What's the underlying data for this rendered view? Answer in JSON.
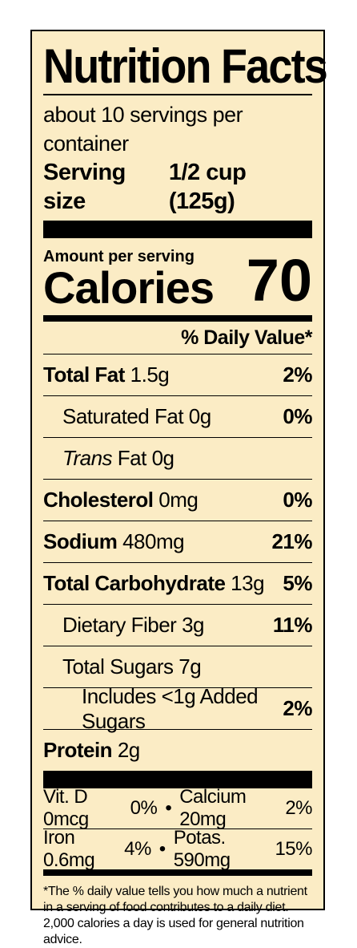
{
  "label": {
    "title": "Nutrition Facts",
    "servings_per_container": "about 10 servings per container",
    "serving_size_label": "Serving size",
    "serving_size_value": "1/2 cup (125g)",
    "amount_per_serving": "Amount per serving",
    "calories_label": "Calories",
    "calories_value": "70",
    "daily_value_header": "% Daily Value*",
    "nutrients": [
      {
        "name": "Total Fat",
        "amount": "1.5g",
        "dv": "2%"
      },
      {
        "name": "Saturated Fat",
        "amount": "0g",
        "dv": "0%"
      },
      {
        "name_italic": "Trans",
        "name": "Fat",
        "amount": "0g",
        "dv": ""
      },
      {
        "name": "Cholesterol",
        "amount": "0mg",
        "dv": "0%"
      },
      {
        "name": "Sodium",
        "amount": "480mg",
        "dv": "21%"
      },
      {
        "name": "Total Carbohydrate",
        "amount": "13g",
        "dv": "5%"
      },
      {
        "name": "Dietary Fiber",
        "amount": "3g",
        "dv": "11%"
      },
      {
        "name": "Total Sugars",
        "amount": "7g",
        "dv": ""
      },
      {
        "name": "Includes <1g Added Sugars",
        "amount": "",
        "dv": "2%"
      },
      {
        "name": "Protein",
        "amount": "2g",
        "dv": ""
      }
    ],
    "vitamins": [
      {
        "left_name": "Vit. D 0mcg",
        "left_dv": "0%",
        "separator": "•",
        "right_name": "Calcium 20mg",
        "right_dv": "2%"
      },
      {
        "left_name": "Iron 0.6mg",
        "left_dv": "4%",
        "separator": "•",
        "right_name": "Potas. 590mg",
        "right_dv": "15%"
      }
    ],
    "footnote": "*The % daily value tells you how much a nutrient in a serving of food contributes to a daily diet. 2,000 calories a day is used for general nutrition advice."
  }
}
